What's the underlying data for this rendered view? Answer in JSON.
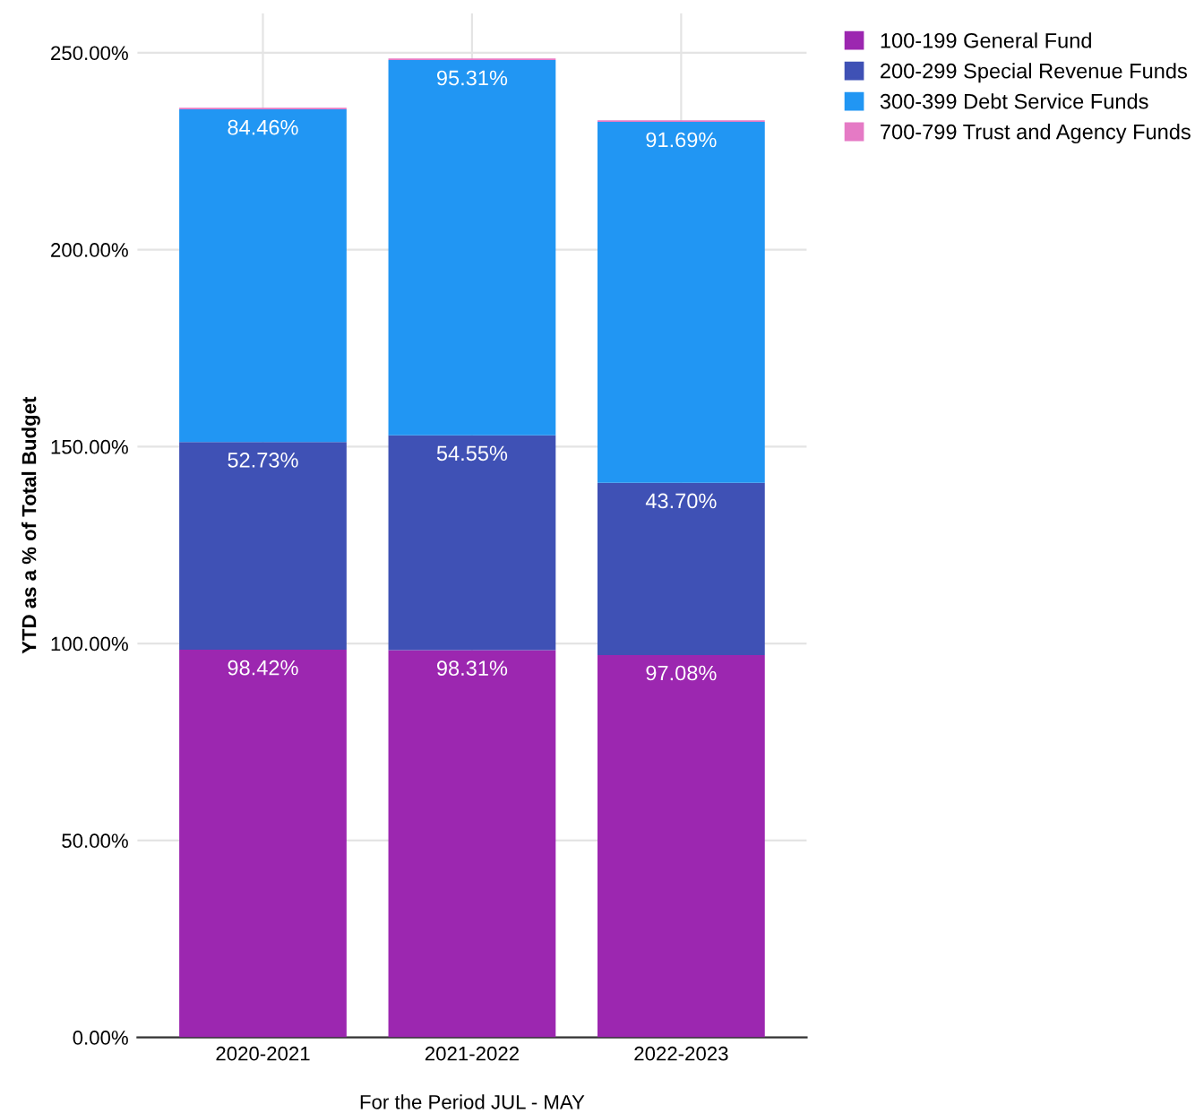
{
  "chart_data": {
    "type": "bar",
    "stacked": true,
    "xlabel": "For the Period JUL - MAY",
    "ylabel": "YTD as a % of Total Budget",
    "categories": [
      "2020-2021",
      "2021-2022",
      "2022-2023"
    ],
    "series": [
      {
        "name": "100-199 General Fund",
        "color": "#9c27b0",
        "values": [
          98.42,
          98.31,
          97.08
        ],
        "value_labels": [
          "98.42%",
          "98.31%",
          "97.08%"
        ]
      },
      {
        "name": "200-299 Special Revenue Funds",
        "color": "#3f51b5",
        "values": [
          52.73,
          54.55,
          43.7
        ],
        "value_labels": [
          "52.73%",
          "54.55%",
          "43.70%"
        ]
      },
      {
        "name": "300-399 Debt Service Funds",
        "color": "#2196f3",
        "values": [
          84.46,
          95.31,
          91.69
        ],
        "value_labels": [
          "84.46%",
          "95.31%",
          "91.69%"
        ]
      },
      {
        "name": "700-799 Trust and Agency Funds",
        "color": "#e57ac5",
        "values": [
          0.4,
          0.4,
          0.4
        ]
      }
    ],
    "ylim": [
      0,
      260
    ],
    "yticks": [
      {
        "value": 0,
        "label": "0.00%"
      },
      {
        "value": 50,
        "label": "50.00%"
      },
      {
        "value": 100,
        "label": "100.00%"
      },
      {
        "value": 150,
        "label": "150.00%"
      },
      {
        "value": 200,
        "label": "200.00%"
      },
      {
        "value": 250,
        "label": "250.00%"
      }
    ],
    "grid": true,
    "legend": "right"
  }
}
